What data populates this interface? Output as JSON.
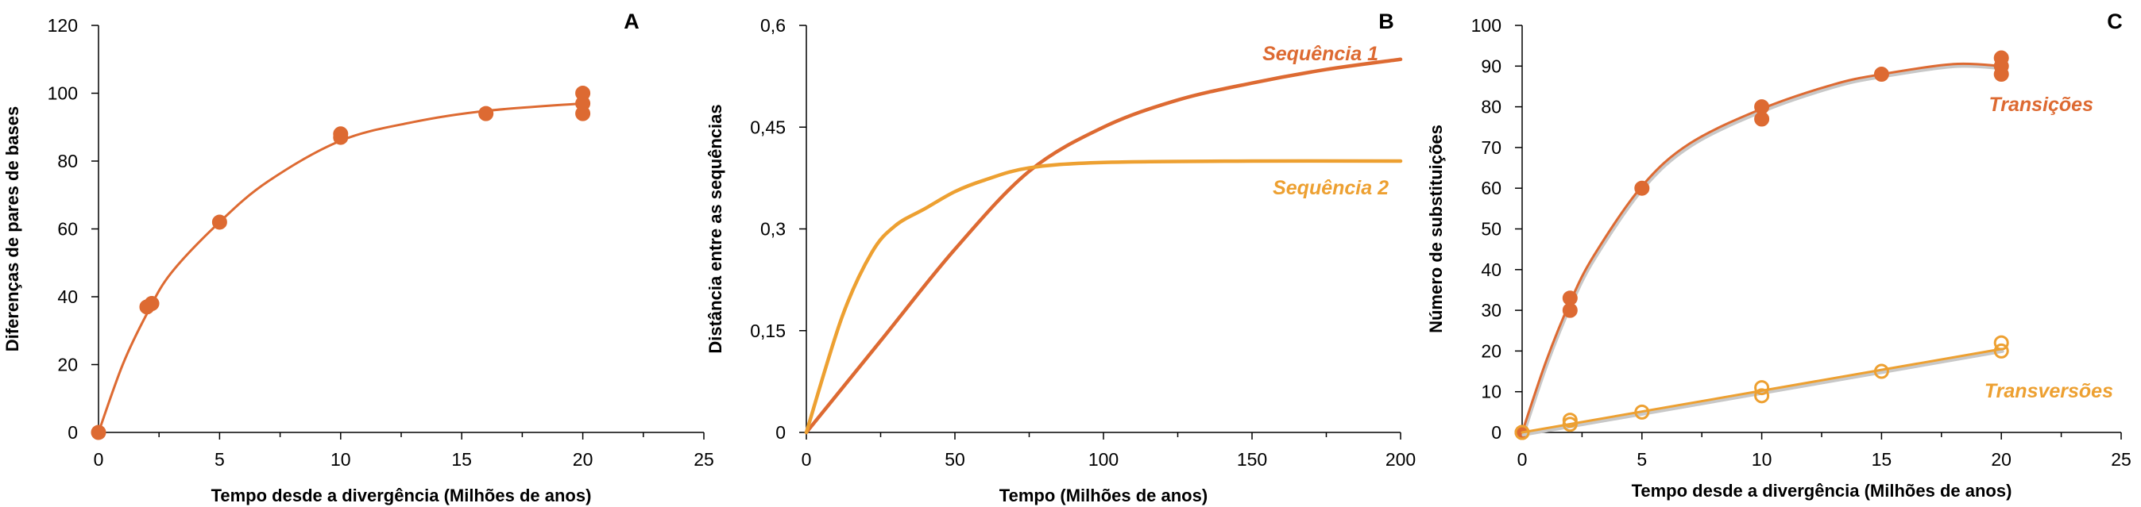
{
  "colors": {
    "primary": "#dd6a32",
    "secondary": "#eda031",
    "shadow": "#c8c8c8",
    "axis": "#000000"
  },
  "chart_data": [
    {
      "id": "A",
      "panel_letter": "A",
      "type": "scatter",
      "xlabel": "Tempo desde a divergência (Milhões de anos)",
      "ylabel": "Diferenças de pares de bases",
      "xlim": [
        0,
        25
      ],
      "ylim": [
        0,
        120
      ],
      "xticks": [
        0,
        5,
        10,
        15,
        20,
        25
      ],
      "yticks": [
        0,
        20,
        40,
        60,
        80,
        100,
        120
      ],
      "grid": false,
      "series": [
        {
          "color_key": "primary",
          "markers": "filled",
          "points": [
            [
              0,
              0
            ],
            [
              2,
              37
            ],
            [
              2.2,
              38
            ],
            [
              5,
              62
            ],
            [
              10,
              87
            ],
            [
              10,
              88
            ],
            [
              16,
              94
            ],
            [
              20,
              94
            ],
            [
              20,
              97
            ],
            [
              20,
              100
            ]
          ],
          "fit": [
            [
              0,
              0
            ],
            [
              1,
              20
            ],
            [
              2,
              35
            ],
            [
              3,
              47
            ],
            [
              5,
              62
            ],
            [
              7,
              74
            ],
            [
              10,
              86
            ],
            [
              13,
              91.5
            ],
            [
              16,
              94.8
            ],
            [
              20,
              97
            ]
          ]
        }
      ]
    },
    {
      "id": "B",
      "panel_letter": "B",
      "type": "line",
      "xlabel": "Tempo (Milhões de anos)",
      "ylabel": "Distância entre as sequências",
      "xlim": [
        0,
        200
      ],
      "ylim": [
        0,
        0.6
      ],
      "xticks": [
        0,
        50,
        100,
        150,
        200
      ],
      "yticks": [
        0,
        0.15,
        0.3,
        0.45,
        0.6
      ],
      "ytick_labels": [
        "0",
        "0,15",
        "0,3",
        "0,45",
        "0,6"
      ],
      "grid": false,
      "series": [
        {
          "name": "Sequência 1",
          "color_key": "primary",
          "points": [
            [
              0,
              0
            ],
            [
              25,
              0.135
            ],
            [
              50,
              0.27
            ],
            [
              75,
              0.385
            ],
            [
              100,
              0.45
            ],
            [
              125,
              0.49
            ],
            [
              150,
              0.515
            ],
            [
              175,
              0.535
            ],
            [
              200,
              0.55
            ]
          ]
        },
        {
          "name": "Sequência 2",
          "color_key": "secondary",
          "points": [
            [
              0,
              0
            ],
            [
              12,
              0.17
            ],
            [
              22,
              0.265
            ],
            [
              30,
              0.305
            ],
            [
              40,
              0.33
            ],
            [
              50,
              0.355
            ],
            [
              60,
              0.372
            ],
            [
              75,
              0.39
            ],
            [
              100,
              0.398
            ],
            [
              150,
              0.4
            ],
            [
              200,
              0.4
            ]
          ]
        }
      ]
    },
    {
      "id": "C",
      "panel_letter": "C",
      "type": "scatter",
      "xlabel": "Tempo desde a divergência (Milhões de anos)",
      "ylabel": "Número de substituições",
      "xlim": [
        0,
        25
      ],
      "ylim": [
        0,
        100
      ],
      "xticks": [
        0,
        5,
        10,
        15,
        20,
        25
      ],
      "yticks": [
        0,
        10,
        20,
        30,
        40,
        50,
        60,
        70,
        80,
        90,
        100
      ],
      "grid": false,
      "series": [
        {
          "name": "Transições",
          "color_key": "primary",
          "markers": "filled",
          "points": [
            [
              0,
              0
            ],
            [
              2,
              30
            ],
            [
              2,
              33
            ],
            [
              5,
              60
            ],
            [
              10,
              77
            ],
            [
              10,
              80
            ],
            [
              15,
              88
            ],
            [
              20,
              88
            ],
            [
              20,
              90
            ],
            [
              20,
              92
            ]
          ],
          "fit": [
            [
              0,
              0
            ],
            [
              1,
              17.5
            ],
            [
              2,
              32
            ],
            [
              3,
              43.5
            ],
            [
              5,
              60.5
            ],
            [
              7,
              71
            ],
            [
              10,
              79.5
            ],
            [
              13,
              85.5
            ],
            [
              15,
              88
            ],
            [
              18,
              90.5
            ],
            [
              20,
              90
            ]
          ]
        },
        {
          "name": "Transversões",
          "color_key": "secondary",
          "markers": "open",
          "points": [
            [
              0,
              0
            ],
            [
              2,
              2
            ],
            [
              2,
              3
            ],
            [
              5,
              5
            ],
            [
              10,
              9
            ],
            [
              10,
              11
            ],
            [
              15,
              15
            ],
            [
              20,
              20
            ],
            [
              20,
              22
            ]
          ],
          "fit": [
            [
              0,
              0
            ],
            [
              20,
              20.5
            ]
          ]
        }
      ]
    }
  ]
}
